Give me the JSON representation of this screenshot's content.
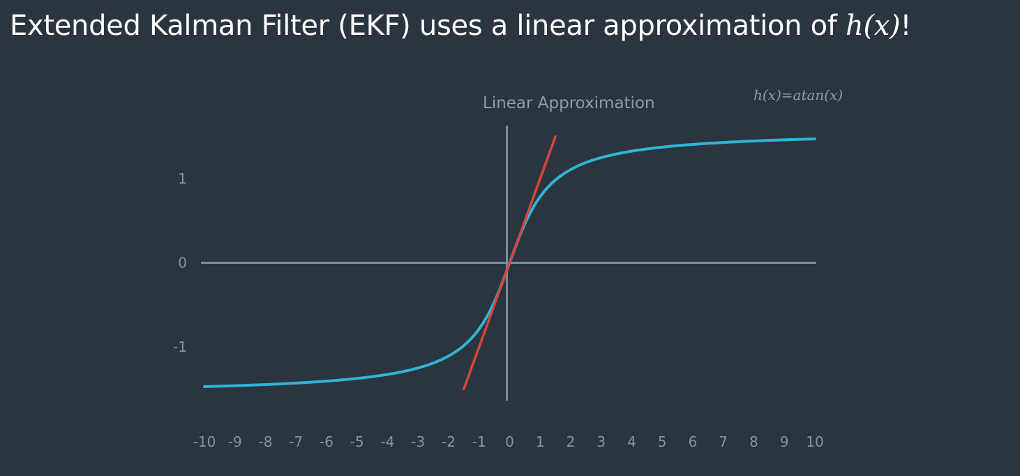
{
  "title": {
    "text": "Extended Kalman Filter (EKF) uses a linear approximation of ",
    "math": "h(x)",
    "suffix": "!"
  },
  "chart_data": {
    "type": "line",
    "title": "",
    "xlabel": "",
    "ylabel": "",
    "xlim": [
      -10,
      10
    ],
    "ylim": [
      -1.5708,
      1.5708
    ],
    "x_ticks": [
      -10,
      -9,
      -8,
      -7,
      -6,
      -5,
      -4,
      -3,
      -2,
      -1,
      0,
      1,
      2,
      3,
      4,
      5,
      6,
      7,
      8,
      9,
      10
    ],
    "y_ticks": [
      1,
      0,
      -1
    ],
    "grid": false,
    "series": [
      {
        "function": "atan(x)",
        "color": "#2eb5d8",
        "x_range": [
          -10,
          10
        ],
        "x": [
          -10,
          -8,
          -6,
          -4,
          -3,
          -2,
          -1,
          -0.5,
          0,
          0.5,
          1,
          2,
          3,
          4,
          6,
          8,
          10
        ],
        "y": [
          -1.471,
          -1.446,
          -1.406,
          -1.326,
          -1.249,
          -1.107,
          -0.785,
          -0.464,
          0,
          0.464,
          0.785,
          1.107,
          1.249,
          1.326,
          1.406,
          1.446,
          1.471
        ]
      },
      {
        "function": "linear approximation at x=0",
        "color": "#d4463a",
        "x": [
          -1.5,
          1.5
        ],
        "y": [
          -1.5,
          1.5
        ]
      }
    ],
    "annotations": [
      {
        "text": "Linear Approximation"
      },
      {
        "text": "h(x)=atan(x)"
      }
    ]
  }
}
